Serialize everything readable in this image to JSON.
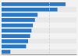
{
  "chart_data": {
    "type": "bar",
    "orientation": "horizontal",
    "values": [
      940,
      820,
      530,
      490,
      460,
      440,
      420,
      390,
      360,
      130
    ],
    "color": "#2878c8",
    "xlim": [
      0,
      1100
    ],
    "xticks": [
      700
    ],
    "grid": true,
    "tick_labels": false
  }
}
